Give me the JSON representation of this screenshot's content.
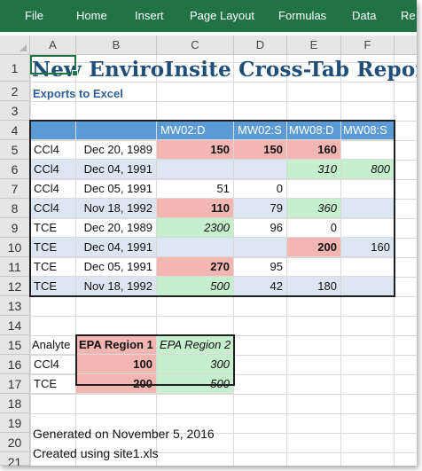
{
  "ribbon": {
    "tabs": [
      "File",
      "Home",
      "Insert",
      "Page Layout",
      "Formulas",
      "Data",
      "Re"
    ]
  },
  "columns": [
    "A",
    "B",
    "C",
    "D",
    "E",
    "F"
  ],
  "rows": [
    "1",
    "2",
    "3",
    "4",
    "5",
    "6",
    "7",
    "8",
    "9",
    "10",
    "11",
    "12",
    "13",
    "14",
    "15",
    "16",
    "17",
    "18",
    "19",
    "20",
    "21"
  ],
  "report": {
    "title": "New EnviroInsite Cross-Tab Report",
    "subtitle": "Exports to Excel"
  },
  "crosstab": {
    "headers": [
      "MW02:D",
      "MW02:S",
      "MW08:D",
      "MW08:S"
    ],
    "rows": [
      {
        "analyte": "CCl4",
        "date": "Dec 20, 1989",
        "c": "150",
        "d": "150",
        "e": "160",
        "f": ""
      },
      {
        "analyte": "CCl4",
        "date": "Dec 04, 1991",
        "c": "",
        "d": "",
        "e": "310",
        "f": "800"
      },
      {
        "analyte": "CCl4",
        "date": "Dec 05, 1991",
        "c": "51",
        "d": "0",
        "e": "",
        "f": ""
      },
      {
        "analyte": "CCl4",
        "date": "Nov 18, 1992",
        "c": "110",
        "d": "79",
        "e": "360",
        "f": ""
      },
      {
        "analyte": "TCE",
        "date": "Dec 20, 1989",
        "c": "2300",
        "d": "96",
        "e": "0",
        "f": ""
      },
      {
        "analyte": "TCE",
        "date": "Dec 04, 1991",
        "c": "",
        "d": "",
        "e": "200",
        "f": "160"
      },
      {
        "analyte": "TCE",
        "date": "Dec 05, 1991",
        "c": "270",
        "d": "95",
        "e": "",
        "f": ""
      },
      {
        "analyte": "TCE",
        "date": "Nov 18, 1992",
        "c": "500",
        "d": "42",
        "e": "180",
        "f": ""
      }
    ]
  },
  "legend": {
    "header": [
      "Analyte",
      "EPA Region 1",
      "EPA Region 2"
    ],
    "rows": [
      {
        "analyte": "CCl4",
        "r1": "100",
        "r2": "300"
      },
      {
        "analyte": "TCE",
        "r1": "200",
        "r2": "500"
      }
    ]
  },
  "footer": {
    "generated": "Generated on November 5, 2016",
    "created": "Created using site1.xls"
  },
  "colors": {
    "ribbon": "#217346",
    "header_blue": "#5b9bd5",
    "exceed_region1": "#f4b6b3",
    "exceed_region2": "#c6efce",
    "title": "#1f4e79"
  }
}
